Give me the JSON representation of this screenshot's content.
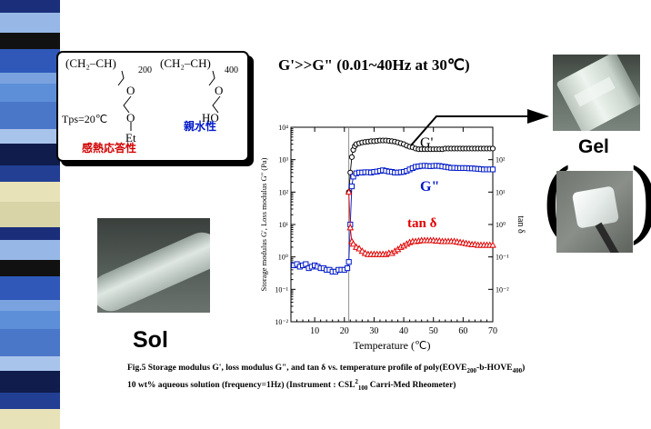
{
  "headline": "G'>>G\"  (0.01~40Hz at 30℃)",
  "structure": {
    "repeat1": "(CH₂–CH)",
    "sub1": "200",
    "repeat2": "(CH₂–CH)",
    "sub2": "400",
    "side1_o1": "O",
    "side1_o2": "O",
    "side1_et": "Et",
    "side2_ho": "HO",
    "tps": "Tps=20℃",
    "thermo_label": "感熱応答性",
    "hydro_label": "親水性"
  },
  "labels": {
    "gel": "Gel",
    "sol": "Sol",
    "gprime": "G'",
    "gdouble": "G\"",
    "tand": "tan  δ"
  },
  "caption": {
    "line1_a": "Fig.5  Storage modulus G', loss modulus G\", and tan  δ  vs. temperature profile of poly(EOVE",
    "line1_sub1": "200",
    "line1_b": "-b-HOVE",
    "line1_sub2": "400",
    "line1_c": ")",
    "line2_a": "10 wt% aqueous solution (frequency=1Hz) (Instrument : CSL",
    "line2_sup": "2",
    "line2_sub": "100",
    "line2_b": " Carri-Med Rheometer)"
  },
  "chart_data": {
    "type": "scatter",
    "xlabel": "Temperature (℃)",
    "ylabel": "Storage modulus G', Loss modulus G\" (Pa)",
    "y2label": "tan δ",
    "xlim": [
      2,
      70
    ],
    "ylim_exp": [
      -2,
      4
    ],
    "y2lim_exp": [
      -3,
      3
    ],
    "x_ticks": [
      "10",
      "20",
      "30",
      "40",
      "50",
      "60",
      "70"
    ],
    "y_ticks": [
      "10⁻²",
      "10⁻¹",
      "10⁰",
      "10¹",
      "10²",
      "10³",
      "10⁴"
    ],
    "y2_ticks": [
      "10⁻²",
      "10⁻¹",
      "10⁰",
      "10¹",
      "10²"
    ],
    "series": [
      {
        "name": "G'",
        "color": "#000000",
        "marker": "circle",
        "axis": "left",
        "x": [
          21.5,
          22,
          22.5,
          23,
          23.5,
          24,
          25,
          26,
          27,
          28,
          29,
          30,
          31,
          32,
          33,
          34,
          35,
          36,
          37,
          38,
          39,
          40,
          41,
          42,
          43,
          44,
          45,
          46,
          47,
          48,
          49,
          50,
          51,
          52,
          53,
          54,
          55,
          56,
          57,
          58,
          59,
          60,
          61,
          62,
          63,
          64,
          65,
          66,
          67,
          68,
          69,
          70
        ],
        "y": [
          100,
          400,
          1200,
          2000,
          2600,
          3000,
          3200,
          3400,
          3500,
          3600,
          3700,
          3700,
          3800,
          3900,
          3900,
          3900,
          3800,
          3700,
          3600,
          3400,
          3200,
          3000,
          2700,
          2500,
          2400,
          2200,
          2100,
          2100,
          2100,
          2100,
          2100,
          2100,
          2100,
          2100,
          2100,
          2200,
          2200,
          2200,
          2200,
          2200,
          2200,
          2200,
          2200,
          2200,
          2200,
          2200,
          2200,
          2200,
          2200,
          2200,
          2200,
          2200
        ]
      },
      {
        "name": "G\"",
        "color": "#0018c8",
        "marker": "square",
        "axis": "left",
        "x": [
          3,
          4,
          5,
          6,
          7,
          8,
          9,
          10,
          11,
          12,
          13,
          14,
          15,
          16,
          17,
          18,
          19,
          20,
          21,
          21.5,
          22,
          22.5,
          23,
          24,
          25,
          26,
          27,
          28,
          29,
          30,
          31,
          32,
          33,
          34,
          35,
          36,
          37,
          38,
          39,
          40,
          41,
          42,
          43,
          44,
          45,
          46,
          47,
          48,
          49,
          50,
          51,
          52,
          53,
          54,
          55,
          56,
          57,
          58,
          59,
          60,
          61,
          62,
          63,
          64,
          65,
          66,
          67,
          68,
          69,
          70
        ],
        "y": [
          0.55,
          0.6,
          0.5,
          0.55,
          0.6,
          0.45,
          0.5,
          0.55,
          0.5,
          0.45,
          0.45,
          0.4,
          0.4,
          0.35,
          0.35,
          0.4,
          0.4,
          0.4,
          0.45,
          0.7,
          10,
          150,
          300,
          380,
          400,
          400,
          410,
          410,
          400,
          420,
          430,
          450,
          470,
          450,
          430,
          420,
          400,
          400,
          410,
          420,
          450,
          500,
          550,
          600,
          620,
          640,
          650,
          640,
          630,
          640,
          650,
          640,
          620,
          600,
          580,
          560,
          560,
          550,
          550,
          550,
          550,
          540,
          540,
          530,
          520,
          510,
          500,
          500,
          500,
          500
        ]
      },
      {
        "name": "tan δ",
        "color": "#e00000",
        "marker": "triangle",
        "axis": "right",
        "x": [
          21.5,
          22,
          22.5,
          23,
          24,
          25,
          26,
          27,
          28,
          29,
          30,
          31,
          32,
          33,
          34,
          35,
          36,
          37,
          38,
          39,
          40,
          41,
          42,
          43,
          44,
          45,
          46,
          47,
          48,
          49,
          50,
          51,
          52,
          53,
          54,
          55,
          56,
          57,
          58,
          59,
          60,
          61,
          62,
          63,
          64,
          65,
          66,
          67,
          68,
          69,
          70
        ],
        "y": [
          10,
          0.8,
          0.3,
          0.25,
          0.2,
          0.18,
          0.15,
          0.13,
          0.12,
          0.12,
          0.12,
          0.12,
          0.12,
          0.12,
          0.12,
          0.13,
          0.13,
          0.15,
          0.17,
          0.2,
          0.22,
          0.25,
          0.28,
          0.3,
          0.3,
          0.31,
          0.32,
          0.32,
          0.32,
          0.32,
          0.32,
          0.31,
          0.31,
          0.3,
          0.3,
          0.3,
          0.3,
          0.3,
          0.29,
          0.28,
          0.27,
          0.26,
          0.25,
          0.24,
          0.24,
          0.23,
          0.23,
          0.23,
          0.23,
          0.23,
          0.23
        ]
      }
    ],
    "grid": false,
    "colors": {
      "gprime": "#000000",
      "gdouble": "#0018c8",
      "tand": "#e00000"
    }
  }
}
